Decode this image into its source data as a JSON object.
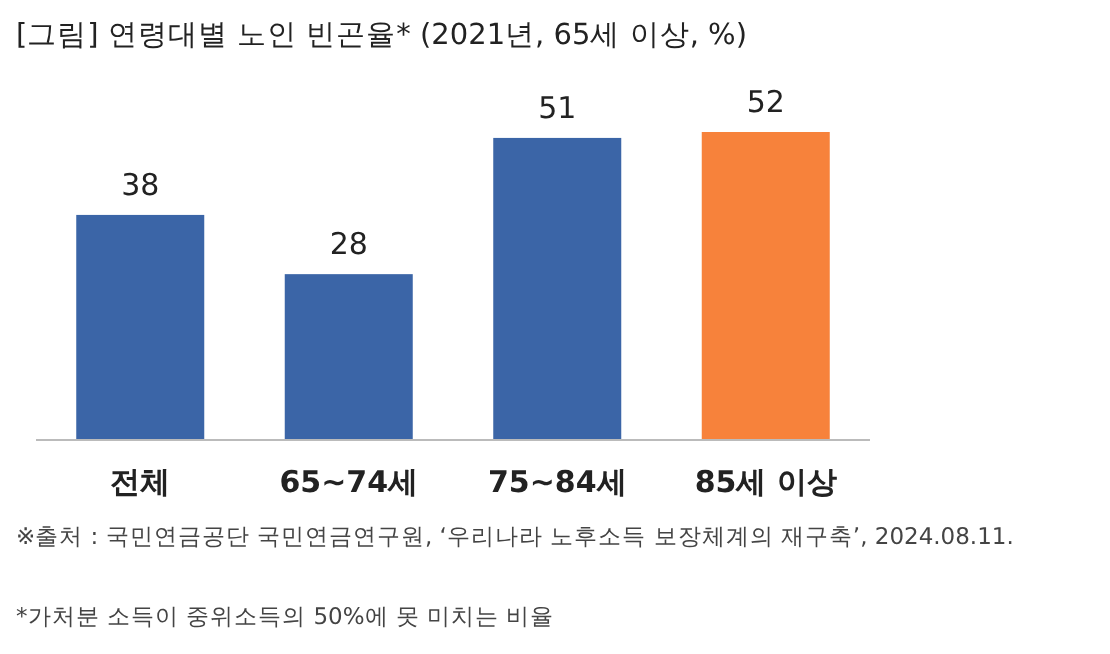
{
  "chart_data": {
    "type": "bar",
    "title": "[그림] 연령대별 노인 빈곤율* (2021년, 65세 이상, %)",
    "categories": [
      "전체",
      "65~74세",
      "75~84세",
      "85세 이상"
    ],
    "values": [
      38,
      28,
      51,
      52
    ],
    "colors": [
      "#3b65a7",
      "#3b65a7",
      "#3b65a7",
      "#f7823b"
    ],
    "data_labels": true,
    "annotations": [
      "※출처 : 국민연금공단 국민연금연구원, ‘우리나라 노후소득 보장체계의 재구축’, 2024.08.11.",
      "*가처분 소득이 중위소득의 50%에 못 미치는 비율"
    ]
  }
}
